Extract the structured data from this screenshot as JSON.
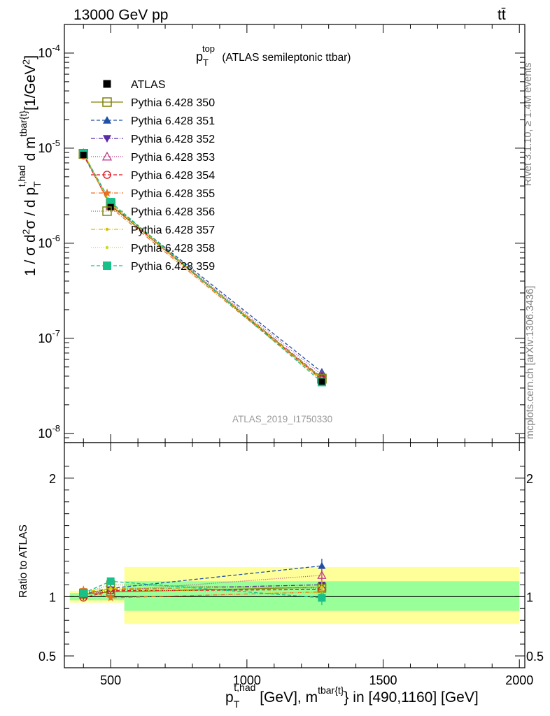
{
  "header": {
    "left": "13000 GeV pp",
    "right": "tt̄"
  },
  "side_labels": {
    "rivet": "Rivet 3.1.10, ≥ 1.4M events",
    "mcplots": "mcplots.cern.ch [arXiv:1306.3436]"
  },
  "watermark": "ATLAS_2019_I1750330",
  "plot_title": {
    "main": "p",
    "sup": "top",
    "sub": "T",
    "rest": " (ATLAS semileptonic ttbar)"
  },
  "ylabel": "1 / σ d²σ / d p_T^{t,had} d m^{tbar{t}} [1/GeV²]",
  "ratio_ylabel": "Ratio to ATLAS",
  "xlabel": "p_T^{t,had} [GeV], m^{tbar{t}} in [490,1160] [GeV]",
  "chart_data": {
    "type": "line",
    "x_scale": "linear",
    "y_scale": "log",
    "xlim": [
      330,
      2020
    ],
    "ylim": [
      8e-09,
      0.0002
    ],
    "ratio_ylim": [
      0.4,
      2.3
    ],
    "x_ticks": [
      500,
      1000,
      1500,
      2000
    ],
    "y_ticks": [
      1e-08,
      1e-07,
      1e-06,
      1e-05,
      0.0001
    ],
    "ratio_ticks": [
      0.5,
      1,
      2
    ],
    "legend_position": "top-left",
    "data": {
      "name": "ATLAS",
      "x": [
        400,
        500,
        1275
      ],
      "y": [
        8.5e-06,
        2.4e-06,
        3.5e-08
      ],
      "bins": [
        [
          350,
          450
        ],
        [
          450,
          550
        ],
        [
          550,
          2000
        ]
      ],
      "band_inner": [
        [
          0.97,
          1.03
        ],
        [
          0.97,
          1.04
        ],
        [
          0.88,
          1.13
        ]
      ],
      "band_outer": [
        [
          0.95,
          1.05
        ],
        [
          0.95,
          1.06
        ],
        [
          0.77,
          1.25
        ]
      ]
    },
    "series": [
      {
        "name": "Pythia 6.428 350",
        "color": "#808000",
        "dash": "",
        "marker": "square-open",
        "ratio": [
          1.02,
          1.04,
          1.08
        ]
      },
      {
        "name": "Pythia 6.428 351",
        "color": "#1f4fa6",
        "dash": "5,3",
        "marker": "triangle-up",
        "ratio": [
          1.02,
          1.07,
          1.26
        ]
      },
      {
        "name": "Pythia 6.428 352",
        "color": "#5b2aa6",
        "dash": "6,2,1,2",
        "marker": "triangle-down",
        "ratio": [
          1.03,
          1.06,
          1.1
        ]
      },
      {
        "name": "Pythia 6.428 353",
        "color": "#c0408c",
        "dash": "1,2",
        "marker": "triangle-up-open",
        "ratio": [
          1.02,
          1.05,
          1.18
        ]
      },
      {
        "name": "Pythia 6.428 354",
        "color": "#e0101c",
        "dash": "5,3",
        "marker": "circle-open",
        "ratio": [
          0.99,
          1.05,
          1.06
        ]
      },
      {
        "name": "Pythia 6.428 355",
        "color": "#f07020",
        "dash": "6,2,1,2",
        "marker": "star",
        "ratio": [
          1.06,
          0.99,
          1.04
        ]
      },
      {
        "name": "Pythia 6.428 356",
        "color": "#7c8a10",
        "dash": "1,2",
        "marker": "square-open",
        "ratio": [
          1.03,
          1.1,
          1.07
        ]
      },
      {
        "name": "Pythia 6.428 357",
        "color": "#d8c000",
        "dash": "6,2,1,2",
        "marker": "dot",
        "ratio": [
          1.04,
          1.07,
          1.08
        ]
      },
      {
        "name": "Pythia 6.428 358",
        "color": "#c8dc20",
        "dash": "1,2",
        "marker": "dot",
        "ratio": [
          1.03,
          1.06,
          1.03
        ]
      },
      {
        "name": "Pythia 6.428 359",
        "color": "#18c08a",
        "dash": "5,3",
        "marker": "square",
        "ratio": [
          1.03,
          1.13,
          0.99
        ]
      }
    ]
  }
}
